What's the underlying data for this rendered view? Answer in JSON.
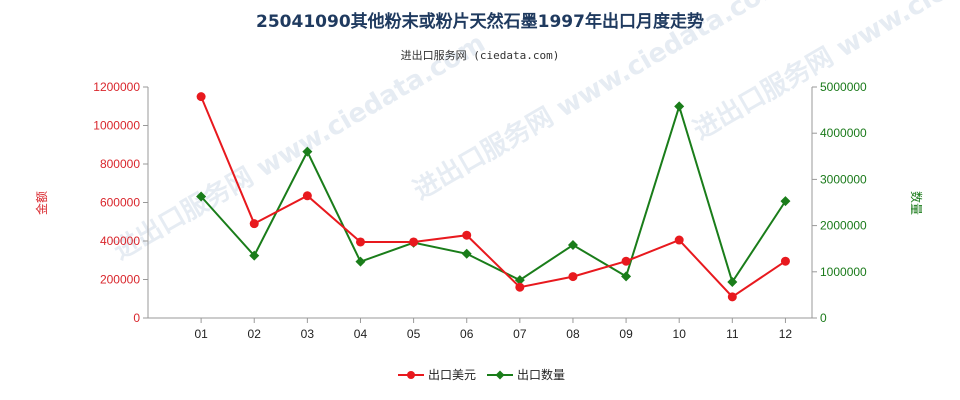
{
  "chart_data": {
    "type": "line",
    "title": "25041090其他粉末或粉片天然石墨1997年出口月度走势",
    "subtitle": "进出口服务网 (ciedata.com)",
    "watermark": "进出口服务网 www.ciedata.com",
    "categories": [
      "01",
      "02",
      "03",
      "04",
      "05",
      "06",
      "07",
      "08",
      "09",
      "10",
      "11",
      "12"
    ],
    "left_axis": {
      "label": "金额",
      "min": 0,
      "max": 1200000,
      "ticks": [
        0,
        200000,
        400000,
        600000,
        800000,
        1000000,
        1200000
      ],
      "tick_labels": [
        "0",
        "200000",
        "400000",
        "600000",
        "800000",
        "1000000",
        "1200000"
      ],
      "color": "#d9262c"
    },
    "right_axis": {
      "label": "数量",
      "min": 0,
      "max": 5000000,
      "ticks": [
        0,
        1000000,
        2000000,
        3000000,
        4000000,
        5000000
      ],
      "tick_labels": [
        "0",
        "1000000",
        "2000000",
        "3000000",
        "4000000",
        "5000000"
      ],
      "color": "#1a7a1a"
    },
    "series": [
      {
        "name": "出口美元",
        "axis": "left",
        "color": "#e8191e",
        "marker": "circle",
        "values": [
          1150000,
          490000,
          635000,
          395000,
          395000,
          430000,
          160000,
          215000,
          295000,
          405000,
          110000,
          295000
        ]
      },
      {
        "name": "出口数量",
        "axis": "right",
        "color": "#1a7d1a",
        "marker": "diamond",
        "values": [
          2630000,
          1350000,
          3600000,
          1220000,
          1630000,
          1390000,
          820000,
          1580000,
          900000,
          4580000,
          780000,
          2530000
        ]
      }
    ],
    "legend_position": "bottom-center",
    "grid": false
  }
}
